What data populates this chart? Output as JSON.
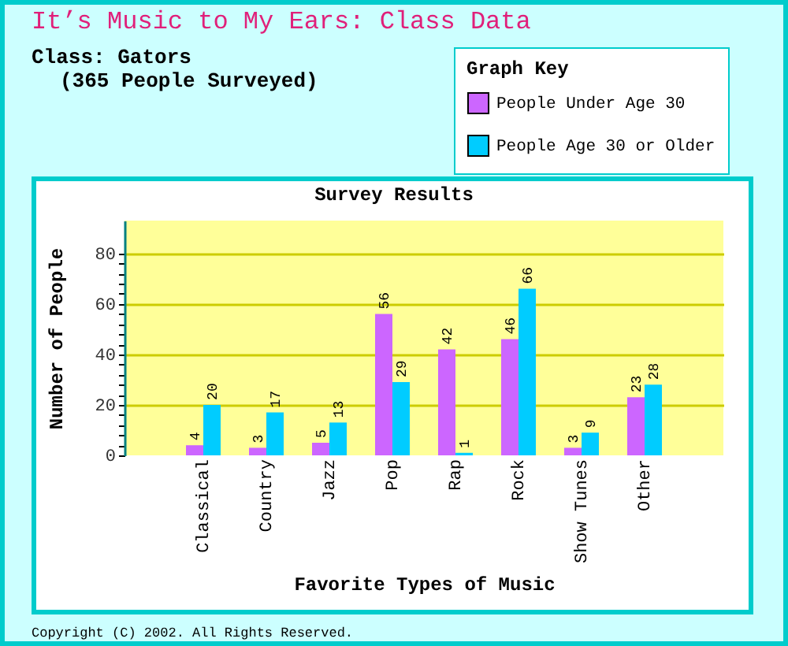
{
  "chart_data": {
    "type": "bar",
    "title": "It’s Music to My Ears: Class Data",
    "subtitle": "Class: Gators",
    "annotations": [
      "(365 People Surveyed)",
      "Survey Results",
      "Copyright (C) 2002. All Rights Reserved."
    ],
    "xlabel": "Favorite Types of Music",
    "ylabel": "Number of People",
    "legend_title": "Graph Key",
    "legend": "top right",
    "categories": [
      "Classical",
      "Country",
      "Jazz",
      "Pop",
      "Rap",
      "Rock",
      "Show Tunes",
      "Other"
    ],
    "series": [
      {
        "name": "People Under Age 30",
        "color": "#cc66ff",
        "values": [
          4,
          3,
          5,
          56,
          42,
          46,
          3,
          23
        ]
      },
      {
        "name": "People Age 30 or Older",
        "color": "#00ccff",
        "values": [
          20,
          17,
          13,
          29,
          1,
          66,
          9,
          28
        ]
      }
    ],
    "ylim": [
      0,
      93
    ],
    "yticks": [
      0,
      {
        "value": 4,
        "label": null
      },
      {
        "value": 8,
        "label": null
      },
      {
        "value": 12,
        "label": null
      },
      {
        "value": 16,
        "label": null
      },
      20,
      {
        "value": 24,
        "label": null
      },
      {
        "value": 28,
        "label": null
      },
      {
        "value": 32,
        "label": null
      },
      {
        "value": 36,
        "label": null
      },
      40,
      {
        "value": 44,
        "label": null
      },
      {
        "value": 48,
        "label": null
      },
      {
        "value": 52,
        "label": null
      },
      {
        "value": 56,
        "label": null
      },
      60,
      {
        "value": 64,
        "label": null
      },
      {
        "value": 68,
        "label": null
      },
      {
        "value": 72,
        "label": null
      },
      {
        "value": 76,
        "label": null
      },
      80
    ],
    "grid": "y",
    "data_labels": true
  }
}
